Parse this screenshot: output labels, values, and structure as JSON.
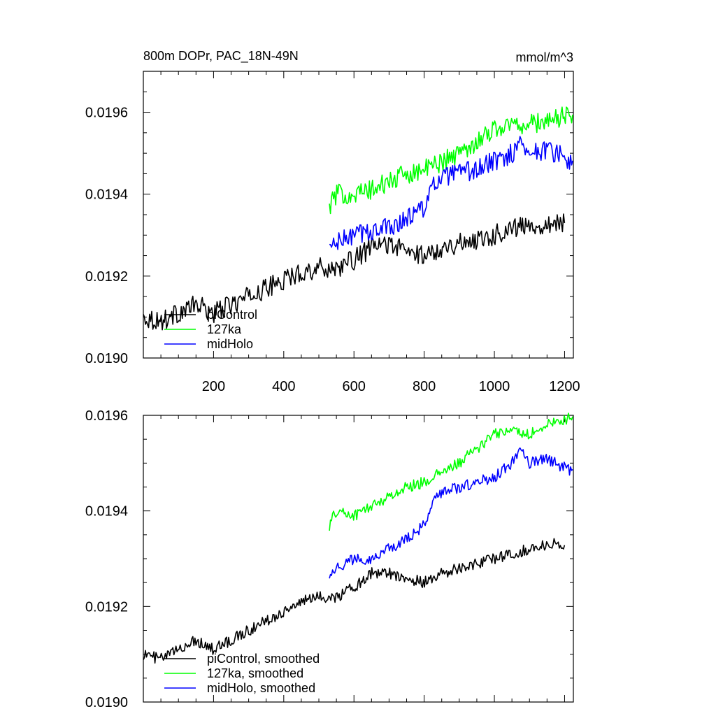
{
  "chart_data": [
    {
      "type": "line",
      "title": "800m DOPr, PAC_18N-49N",
      "units": "mmol/m^3",
      "xlim": [
        0,
        1225
      ],
      "ylim": [
        0.019,
        0.0197
      ],
      "x_ticks": [
        200,
        400,
        600,
        800,
        1000,
        1200
      ],
      "x_tick_labels": [
        "200",
        "400",
        "600",
        "800",
        "1000",
        "1200"
      ],
      "y_ticks": [
        0.019,
        0.0192,
        0.0194,
        0.0196
      ],
      "y_tick_labels": [
        "0.0190",
        "0.0192",
        "0.0194",
        "0.0196"
      ],
      "legend_position": "bottom-left",
      "series": [
        {
          "name": "piControl",
          "color": "#000000",
          "x": [
            0,
            50,
            100,
            150,
            200,
            250,
            300,
            350,
            400,
            450,
            500,
            550,
            600,
            650,
            700,
            750,
            800,
            850,
            900,
            950,
            1000,
            1050,
            1100,
            1150,
            1200
          ],
          "y": [
            0.0191,
            0.01909,
            0.01911,
            0.01913,
            0.01911,
            0.01913,
            0.01915,
            0.01917,
            0.01919,
            0.01921,
            0.01922,
            0.01922,
            0.01924,
            0.01927,
            0.01928,
            0.01926,
            0.01925,
            0.01927,
            0.01928,
            0.01929,
            0.0193,
            0.01932,
            0.01932,
            0.01933,
            0.01933
          ]
        },
        {
          "name": "127ka",
          "color": "#00ff00",
          "x": [
            530,
            550,
            600,
            650,
            700,
            750,
            800,
            850,
            900,
            950,
            1000,
            1050,
            1100,
            1150,
            1200,
            1225
          ],
          "y": [
            0.01937,
            0.0194,
            0.0194,
            0.01941,
            0.01943,
            0.01945,
            0.01946,
            0.01948,
            0.0195,
            0.01953,
            0.01956,
            0.01957,
            0.01957,
            0.01958,
            0.01959,
            0.0196
          ]
        },
        {
          "name": "midHolo",
          "color": "#0000ff",
          "x": [
            530,
            550,
            600,
            650,
            700,
            750,
            800,
            820,
            850,
            900,
            950,
            1000,
            1050,
            1080,
            1100,
            1150,
            1200,
            1225
          ],
          "y": [
            0.01927,
            0.01928,
            0.0193,
            0.01931,
            0.01932,
            0.01934,
            0.01937,
            0.01941,
            0.01944,
            0.01945,
            0.01946,
            0.01948,
            0.0195,
            0.01953,
            0.0195,
            0.01951,
            0.01949,
            0.01947
          ]
        }
      ]
    },
    {
      "type": "line",
      "xlim": [
        0,
        1225
      ],
      "ylim": [
        0.019,
        0.0196
      ],
      "x_ticks": [
        200,
        400,
        600,
        800,
        1000,
        1200
      ],
      "y_ticks": [
        0.019,
        0.0192,
        0.0194,
        0.0196
      ],
      "y_tick_labels": [
        "0.0190",
        "0.0192",
        "0.0194",
        "0.0196"
      ],
      "legend_position": "bottom-left",
      "series": [
        {
          "name": "piControl, smoothed",
          "color": "#000000",
          "x": [
            0,
            50,
            100,
            150,
            200,
            250,
            300,
            350,
            400,
            450,
            500,
            550,
            600,
            650,
            700,
            750,
            800,
            850,
            900,
            950,
            1000,
            1050,
            1100,
            1150,
            1200
          ],
          "y": [
            0.0191,
            0.01909,
            0.01911,
            0.01913,
            0.01911,
            0.01913,
            0.01915,
            0.01917,
            0.01919,
            0.01921,
            0.01922,
            0.01922,
            0.01924,
            0.01927,
            0.01927,
            0.01926,
            0.01925,
            0.01927,
            0.01928,
            0.01929,
            0.0193,
            0.01931,
            0.01932,
            0.01933,
            0.01933
          ]
        },
        {
          "name": "127ka, smoothed",
          "color": "#00ff00",
          "x": [
            530,
            550,
            600,
            650,
            700,
            750,
            800,
            850,
            900,
            950,
            1000,
            1050,
            1100,
            1150,
            1200,
            1225
          ],
          "y": [
            0.01937,
            0.0194,
            0.01939,
            0.01941,
            0.01943,
            0.01945,
            0.01946,
            0.01948,
            0.0195,
            0.01953,
            0.01956,
            0.01957,
            0.01956,
            0.01958,
            0.01959,
            0.0196
          ]
        },
        {
          "name": "midHolo, smoothed",
          "color": "#0000ff",
          "x": [
            530,
            550,
            600,
            650,
            700,
            750,
            800,
            820,
            850,
            900,
            950,
            1000,
            1050,
            1080,
            1100,
            1150,
            1200,
            1225
          ],
          "y": [
            0.01927,
            0.01928,
            0.0193,
            0.0193,
            0.01932,
            0.01934,
            0.01937,
            0.01941,
            0.01944,
            0.01945,
            0.01946,
            0.01947,
            0.0195,
            0.01953,
            0.0195,
            0.01951,
            0.01949,
            0.01948
          ]
        }
      ]
    }
  ]
}
